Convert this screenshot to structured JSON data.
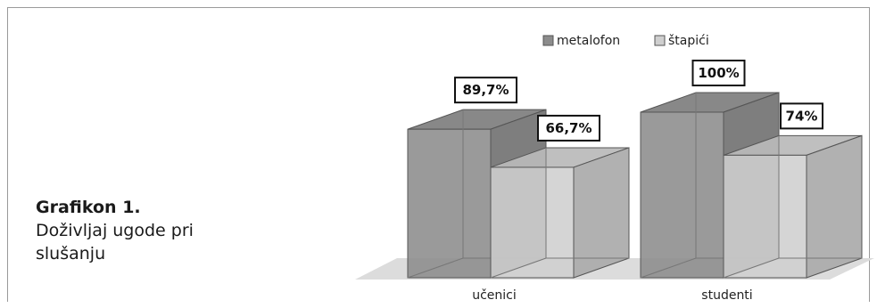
{
  "figure": {
    "caption_number": "Grafikon 1.",
    "caption_text_line1": "Doživljaj ugode pri",
    "caption_text_line2": "slušanju"
  },
  "chart_data": {
    "type": "bar",
    "categories": [
      "učenici",
      "studenti"
    ],
    "series": [
      {
        "name": "metalofon",
        "values": [
          89.7,
          100
        ],
        "labels": [
          "89,7%",
          "100%"
        ],
        "color": "#8c8c8c"
      },
      {
        "name": "štapići",
        "values": [
          66.7,
          74
        ],
        "labels": [
          "66,7%",
          "74%"
        ],
        "color": "#cfcfcf"
      }
    ],
    "ylim": [
      0,
      100
    ],
    "legend_position": "top",
    "grid": false
  }
}
